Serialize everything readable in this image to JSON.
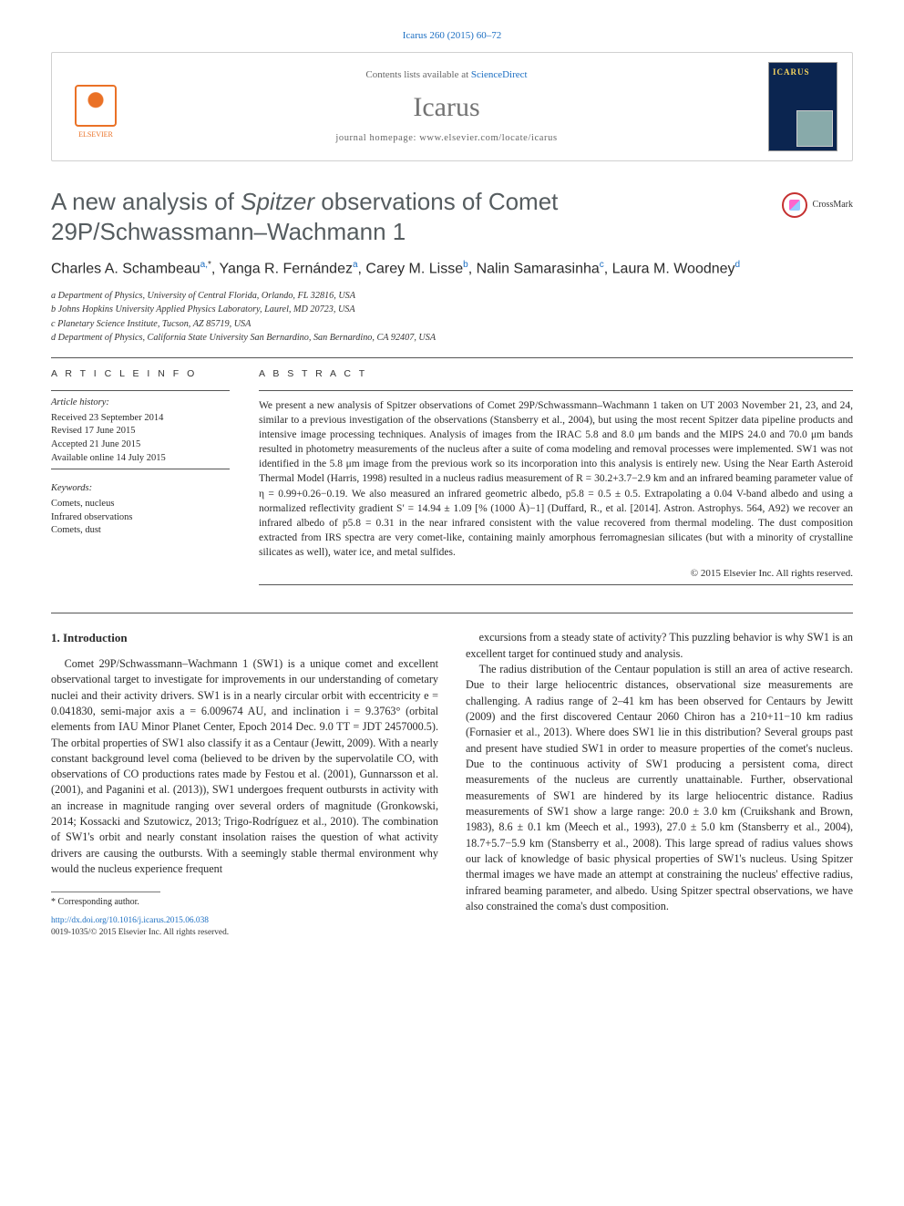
{
  "top_citation_link": "Icarus 260 (2015) 60–72",
  "header": {
    "contents_line_pre": "Contents lists available at ",
    "contents_line_link": "ScienceDirect",
    "journal_name": "Icarus",
    "homepage_label": "journal homepage: www.elsevier.com/locate/icarus",
    "elsevier_label": "ELSEVIER",
    "cover_title": "ICARUS"
  },
  "title_plain_pre": "A new analysis of ",
  "title_italic": "Spitzer",
  "title_plain_post": " observations of Comet 29P/Schwassmann–Wachmann 1",
  "crossmark_label": "CrossMark",
  "authors_html": "Charles A. Schambeau",
  "authors": [
    {
      "name": "Charles A. Schambeau",
      "aff": "a,",
      "star": "*"
    },
    {
      "name": ", Yanga R. Fernández",
      "aff": "a",
      "star": ""
    },
    {
      "name": ", Carey M. Lisse",
      "aff": "b",
      "star": ""
    },
    {
      "name": ", Nalin Samarasinha",
      "aff": "c",
      "star": ""
    },
    {
      "name": ", Laura M. Woodney",
      "aff": "d",
      "star": ""
    }
  ],
  "affiliations": [
    "a Department of Physics, University of Central Florida, Orlando, FL 32816, USA",
    "b Johns Hopkins University Applied Physics Laboratory, Laurel, MD 20723, USA",
    "c Planetary Science Institute, Tucson, AZ 85719, USA",
    "d Department of Physics, California State University San Bernardino, San Bernardino, CA 92407, USA"
  ],
  "article_info_heading": "A R T I C L E   I N F O",
  "abstract_heading": "A B S T R A C T",
  "history_label": "Article history:",
  "history": [
    "Received 23 September 2014",
    "Revised 17 June 2015",
    "Accepted 21 June 2015",
    "Available online 14 July 2015"
  ],
  "keywords_label": "Keywords:",
  "keywords": [
    "Comets, nucleus",
    "Infrared observations",
    "Comets, dust"
  ],
  "abstract_text": "We present a new analysis of Spitzer observations of Comet 29P/Schwassmann–Wachmann 1 taken on UT 2003 November 21, 23, and 24, similar to a previous investigation of the observations (Stansberry et al., 2004), but using the most recent Spitzer data pipeline products and intensive image processing techniques. Analysis of images from the IRAC 5.8 and 8.0 μm bands and the MIPS 24.0 and 70.0 μm bands resulted in photometry measurements of the nucleus after a suite of coma modeling and removal processes were implemented. SW1 was not identified in the 5.8 μm image from the previous work so its incorporation into this analysis is entirely new. Using the Near Earth Asteroid Thermal Model (Harris, 1998) resulted in a nucleus radius measurement of R = 30.2+3.7−2.9 km and an infrared beaming parameter value of η = 0.99+0.26−0.19. We also measured an infrared geometric albedo, p5.8 = 0.5 ± 0.5. Extrapolating a 0.04 V-band albedo and using a normalized reflectivity gradient S′ = 14.94 ± 1.09 [% (1000 Å)−1] (Duffard, R., et al. [2014]. Astron. Astrophys. 564, A92) we recover an infrared albedo of p5.8 = 0.31 in the near infrared consistent with the value recovered from thermal modeling. The dust composition extracted from IRS spectra are very comet-like, containing mainly amorphous ferromagnesian silicates (but with a minority of crystalline silicates as well), water ice, and metal sulfides.",
  "copyright": "© 2015 Elsevier Inc. All rights reserved.",
  "section1_heading": "1. Introduction",
  "body_col1_p1": "Comet 29P/Schwassmann–Wachmann 1 (SW1) is a unique comet and excellent observational target to investigate for improvements in our understanding of cometary nuclei and their activity drivers. SW1 is in a nearly circular orbit with eccentricity e = 0.041830, semi-major axis a = 6.009674 AU, and inclination i = 9.3763° (orbital elements from IAU Minor Planet Center, Epoch 2014 Dec. 9.0 TT = JDT 2457000.5). The orbital properties of SW1 also classify it as a Centaur (Jewitt, 2009). With a nearly constant background level coma (believed to be driven by the supervolatile CO, with observations of CO productions rates made by Festou et al. (2001), Gunnarsson et al. (2001), and Paganini et al. (2013)), SW1 undergoes frequent outbursts in activity with an increase in magnitude ranging over several orders of magnitude (Gronkowski, 2014; Kossacki and Szutowicz, 2013; Trigo-Rodríguez et al., 2010). The combination of SW1's orbit and nearly constant insolation raises the question of what activity drivers are causing the outbursts. With a seemingly stable thermal environment why would the nucleus experience frequent",
  "body_col2_p1": "excursions from a steady state of activity? This puzzling behavior is why SW1 is an excellent target for continued study and analysis.",
  "body_col2_p2": "The radius distribution of the Centaur population is still an area of active research. Due to their large heliocentric distances, observational size measurements are challenging. A radius range of 2–41 km has been observed for Centaurs by Jewitt (2009) and the first discovered Centaur 2060 Chiron has a 210+11−10 km radius (Fornasier et al., 2013). Where does SW1 lie in this distribution? Several groups past and present have studied SW1 in order to measure properties of the comet's nucleus. Due to the continuous activity of SW1 producing a persistent coma, direct measurements of the nucleus are currently unattainable. Further, observational measurements of SW1 are hindered by its large heliocentric distance. Radius measurements of SW1 show a large range: 20.0 ± 3.0 km (Cruikshank and Brown, 1983), 8.6 ± 0.1 km (Meech et al., 1993), 27.0 ± 5.0 km (Stansberry et al., 2004), 18.7+5.7−5.9 km (Stansberry et al., 2008). This large spread of radius values shows our lack of knowledge of basic physical properties of SW1's nucleus. Using Spitzer thermal images we have made an attempt at constraining the nucleus' effective radius, infrared beaming parameter, and albedo. Using Spitzer spectral observations, we have also constrained the coma's dust composition.",
  "footnote_marker": "* Corresponding author.",
  "doi_line": "http://dx.doi.org/10.1016/j.icarus.2015.06.038",
  "issn_line": "0019-1035/© 2015 Elsevier Inc. All rights reserved.",
  "colors": {
    "link": "#1b6ec2",
    "elsevier": "#ea7126",
    "cover_bg": "#0b2550",
    "text": "#2a2a2a",
    "title_gray": "#555c5f",
    "rule": "#555555"
  }
}
